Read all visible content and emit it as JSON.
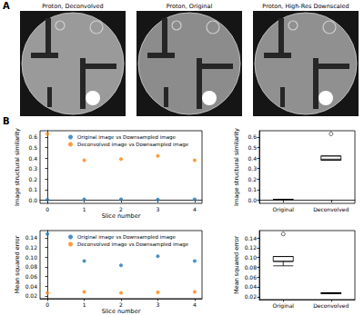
{
  "panel_labels": [
    "A",
    "B"
  ],
  "images": [
    {
      "title": "Proton, Deconvolved"
    },
    {
      "title": "Proton, Original"
    },
    {
      "title": "Proton, High-Res Downscaled"
    }
  ],
  "chart_data": [
    {
      "type": "scatter",
      "xlabel": "Slice number",
      "ylabel": "Image structural similarity",
      "x": [
        0,
        1,
        2,
        3,
        4
      ],
      "series": [
        {
          "name": "Original image vs Downsampled image",
          "color": "#1f77b4",
          "values": [
            0.005,
            0.008,
            0.008,
            0.007,
            0.008
          ]
        },
        {
          "name": "Deconvolved image vs Downsampled image",
          "color": "#ff7f0e",
          "values": [
            0.63,
            0.38,
            0.39,
            0.42,
            0.38
          ]
        }
      ],
      "xlim": [
        -0.2,
        4.2
      ],
      "xticks": [
        0,
        1,
        2,
        3,
        4
      ],
      "ylim": [
        -0.03,
        0.66
      ],
      "yticks": [
        {
          "value": 0,
          "label": "0.0"
        },
        0.1,
        0.2,
        0.3,
        0.4,
        0.5,
        0.6
      ],
      "legend": "upper left",
      "grid": false
    },
    {
      "type": "box",
      "ylabel": "Image structural similarity",
      "categories": [
        "Original",
        "Deconvolved"
      ],
      "boxes": [
        [
          0.005,
          0.007,
          0.008,
          0.008,
          0.008
        ],
        [
          0.38,
          0.38,
          0.39,
          0.42,
          0.42
        ]
      ],
      "outliers": [
        [],
        [
          0.63
        ]
      ],
      "ylim": [
        -0.03,
        0.66
      ],
      "yticks": [
        {
          "value": 0,
          "label": "0.0"
        },
        0.1,
        0.2,
        0.3,
        0.4,
        0.5,
        0.6
      ],
      "grid": false
    },
    {
      "type": "scatter",
      "xlabel": "Slice number",
      "ylabel": "Mean squared error",
      "x": [
        0,
        1,
        2,
        3,
        4
      ],
      "series": [
        {
          "name": "Original image vs Downsampled image",
          "color": "#1f77b4",
          "values": [
            0.148,
            0.092,
            0.083,
            0.102,
            0.092
          ]
        },
        {
          "name": "Deconvolved image vs Downsampled image",
          "color": "#ff7f0e",
          "values": [
            0.026,
            0.028,
            0.026,
            0.027,
            0.028
          ]
        }
      ],
      "xlim": [
        -0.2,
        4.2
      ],
      "xticks": [
        0,
        1,
        2,
        3,
        4
      ],
      "ylim": [
        0.014,
        0.155
      ],
      "yticks": [
        0.02,
        0.04,
        0.06,
        0.08,
        {
          "value": 0.1,
          "label": "0.10"
        },
        0.12,
        0.14
      ],
      "legend": "upper left",
      "grid": false
    },
    {
      "type": "box",
      "ylabel": "Mean squared error",
      "categories": [
        "Original",
        "Deconvolved"
      ],
      "boxes": [
        [
          0.083,
          0.092,
          0.092,
          0.102,
          0.102
        ],
        [
          0.026,
          0.026,
          0.027,
          0.028,
          0.028
        ]
      ],
      "outliers": [
        [
          0.148
        ],
        []
      ],
      "ylim": [
        0.014,
        0.155
      ],
      "yticks": [
        0.02,
        0.04,
        0.06,
        0.08,
        {
          "value": 0.1,
          "label": "0.10"
        },
        0.12,
        0.14
      ],
      "grid": false
    }
  ]
}
